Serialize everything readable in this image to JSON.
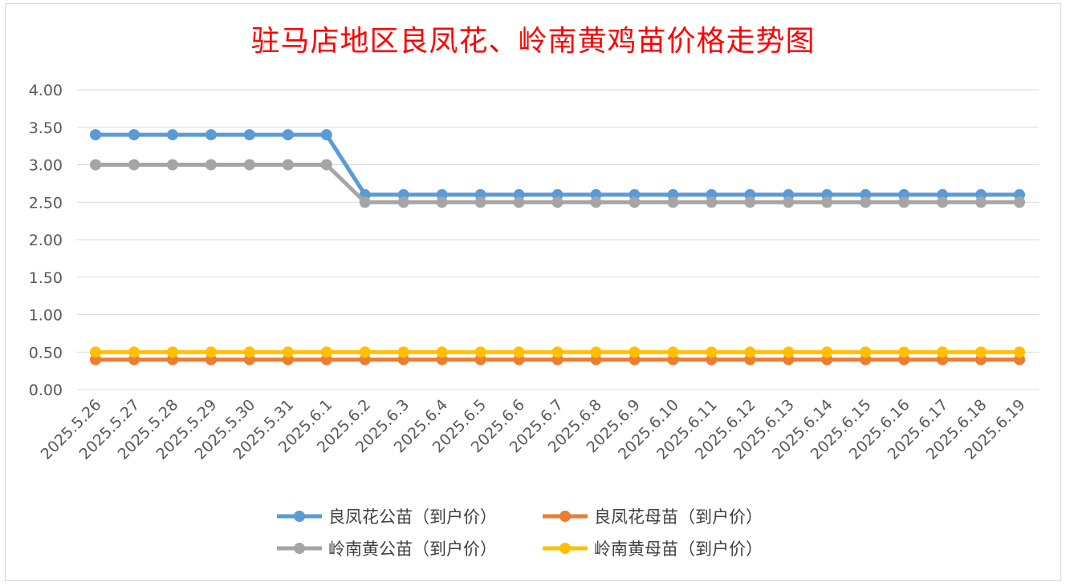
{
  "chart_data": {
    "type": "line",
    "title": "驻马店地区良凤花、岭南黄鸡苗价格走势图",
    "xlabel": "",
    "ylabel": "",
    "ylim": [
      0,
      4
    ],
    "yticks": [
      "0.00",
      "0.50",
      "1.00",
      "1.50",
      "2.00",
      "2.50",
      "3.00",
      "3.50",
      "4.00"
    ],
    "grid": true,
    "legend_position": "bottom",
    "categories": [
      "2025.5.26",
      "2025.5.27",
      "2025.5.28",
      "2025.5.29",
      "2025.5.30",
      "2025.5.31",
      "2025.6.1",
      "2025.6.2",
      "2025.6.3",
      "2025.6.4",
      "2025.6.5",
      "2025.6.6",
      "2025.6.7",
      "2025.6.8",
      "2025.6.9",
      "2025.6.10",
      "2025.6.11",
      "2025.6.12",
      "2025.6.13",
      "2025.6.14",
      "2025.6.15",
      "2025.6.16",
      "2025.6.17",
      "2025.6.18",
      "2025.6.19"
    ],
    "series": [
      {
        "name": "良凤花公苗（到户价）",
        "color": "#5b9bd5",
        "values": [
          3.4,
          3.4,
          3.4,
          3.4,
          3.4,
          3.4,
          3.4,
          2.6,
          2.6,
          2.6,
          2.6,
          2.6,
          2.6,
          2.6,
          2.6,
          2.6,
          2.6,
          2.6,
          2.6,
          2.6,
          2.6,
          2.6,
          2.6,
          2.6,
          2.6
        ]
      },
      {
        "name": "良凤花母苗（到户价）",
        "color": "#ed7d31",
        "values": [
          0.4,
          0.4,
          0.4,
          0.4,
          0.4,
          0.4,
          0.4,
          0.4,
          0.4,
          0.4,
          0.4,
          0.4,
          0.4,
          0.4,
          0.4,
          0.4,
          0.4,
          0.4,
          0.4,
          0.4,
          0.4,
          0.4,
          0.4,
          0.4,
          0.4
        ]
      },
      {
        "name": "岭南黄公苗（到户价）",
        "color": "#a5a5a5",
        "values": [
          3.0,
          3.0,
          3.0,
          3.0,
          3.0,
          3.0,
          3.0,
          2.5,
          2.5,
          2.5,
          2.5,
          2.5,
          2.5,
          2.5,
          2.5,
          2.5,
          2.5,
          2.5,
          2.5,
          2.5,
          2.5,
          2.5,
          2.5,
          2.5,
          2.5
        ]
      },
      {
        "name": "岭南黄母苗（到户价）",
        "color": "#ffc000",
        "values": [
          0.5,
          0.5,
          0.5,
          0.5,
          0.5,
          0.5,
          0.5,
          0.5,
          0.5,
          0.5,
          0.5,
          0.5,
          0.5,
          0.5,
          0.5,
          0.5,
          0.5,
          0.5,
          0.5,
          0.5,
          0.5,
          0.5,
          0.5,
          0.5,
          0.5
        ]
      }
    ]
  }
}
